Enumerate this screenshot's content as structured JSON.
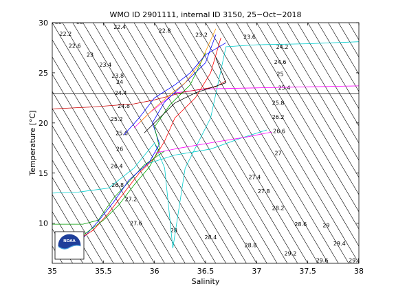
{
  "chart_data": {
    "type": "line",
    "title": "WMO ID 2901111, internal ID 3150, 25−Oct−2018",
    "xlabel": "Salinity",
    "ylabel": "Temperature [°C]",
    "xlim": [
      35,
      38
    ],
    "ylim": [
      6,
      30
    ],
    "xticks": [
      "35",
      "35.5",
      "36",
      "36.5",
      "37",
      "37.5",
      "38"
    ],
    "yticks": [
      "10",
      "15",
      "20",
      "25",
      "30"
    ],
    "grid": false,
    "legend": "none",
    "background_contours": {
      "description_values": "density (sigma) isopycnal labels",
      "labels": [
        {
          "text": "22",
          "s": 35.06,
          "t": 29.9
        },
        {
          "text": "22",
          "s": 35.27,
          "t": 29.9
        },
        {
          "text": "22.2",
          "s": 35.13,
          "t": 28.7
        },
        {
          "text": "22.4",
          "s": 35.66,
          "t": 29.4
        },
        {
          "text": "22.6",
          "s": 35.22,
          "t": 27.5
        },
        {
          "text": "22.8",
          "s": 36.1,
          "t": 29.0
        },
        {
          "text": "23",
          "s": 35.37,
          "t": 26.6
        },
        {
          "text": "23.2",
          "s": 36.46,
          "t": 28.6
        },
        {
          "text": "23.4",
          "s": 35.52,
          "t": 25.6
        },
        {
          "text": "23.6",
          "s": 36.93,
          "t": 28.4
        },
        {
          "text": "23.8",
          "s": 35.64,
          "t": 24.5
        },
        {
          "text": "24",
          "s": 35.66,
          "t": 23.9
        },
        {
          "text": "24.2",
          "s": 37.25,
          "t": 27.4
        },
        {
          "text": "24.4",
          "s": 35.67,
          "t": 22.8
        },
        {
          "text": "24.6",
          "s": 37.23,
          "t": 25.9
        },
        {
          "text": "24.8",
          "s": 35.7,
          "t": 21.5
        },
        {
          "text": "25",
          "s": 37.23,
          "t": 24.7
        },
        {
          "text": "25.2",
          "s": 35.63,
          "t": 20.2
        },
        {
          "text": "25.4",
          "s": 37.27,
          "t": 23.3
        },
        {
          "text": "25.6",
          "s": 35.68,
          "t": 18.8
        },
        {
          "text": "25.8",
          "s": 37.21,
          "t": 21.8
        },
        {
          "text": "26",
          "s": 35.66,
          "t": 17.2
        },
        {
          "text": "26.2",
          "s": 37.21,
          "t": 20.4
        },
        {
          "text": "26.4",
          "s": 35.63,
          "t": 15.5
        },
        {
          "text": "26.6",
          "s": 37.22,
          "t": 19.0
        },
        {
          "text": "26.8",
          "s": 35.64,
          "t": 13.6
        },
        {
          "text": "27",
          "s": 37.21,
          "t": 16.8
        },
        {
          "text": "27.2",
          "s": 35.77,
          "t": 12.2
        },
        {
          "text": "27.4",
          "s": 36.98,
          "t": 14.4
        },
        {
          "text": "27.6",
          "s": 35.82,
          "t": 9.8
        },
        {
          "text": "27.8",
          "s": 37.07,
          "t": 13.0
        },
        {
          "text": "28",
          "s": 36.19,
          "t": 9.1
        },
        {
          "text": "28.2",
          "s": 37.21,
          "t": 11.3
        },
        {
          "text": "28.4",
          "s": 36.55,
          "t": 8.4
        },
        {
          "text": "28.6",
          "s": 37.43,
          "t": 9.7
        },
        {
          "text": "28.8",
          "s": 36.94,
          "t": 7.6
        },
        {
          "text": "29",
          "s": 37.68,
          "t": 9.6
        },
        {
          "text": "29.2",
          "s": 37.33,
          "t": 6.8
        },
        {
          "text": "29.4",
          "s": 37.81,
          "t": 7.8
        },
        {
          "text": "29.6",
          "s": 37.64,
          "t": 6.1
        },
        {
          "text": "29.8",
          "s": 37.96,
          "t": 6.1
        }
      ]
    },
    "series": [
      {
        "color": "#00cccc",
        "s": [
          35.0,
          35.25,
          35.55,
          35.8,
          36.0,
          36.1,
          36.18,
          36.3,
          36.45,
          36.55,
          36.7,
          37.0,
          37.5,
          38.0
        ],
        "t": [
          13.0,
          13.1,
          13.5,
          15.5,
          18.0,
          15.5,
          7.5,
          15.5,
          18.5,
          20.5,
          27.6,
          27.8,
          27.9,
          28.1
        ]
      },
      {
        "color": "#ff00ff",
        "s": [
          35.8,
          35.95,
          36.2,
          36.5,
          37.0,
          37.5,
          38.0
        ],
        "t": [
          19.5,
          21.0,
          23.0,
          23.4,
          23.5,
          23.6,
          23.7
        ]
      },
      {
        "color": "#cc0000",
        "s": [
          35.0,
          35.4,
          35.8,
          36.0,
          36.3,
          36.6,
          36.7
        ],
        "t": [
          21.4,
          21.6,
          21.9,
          22.3,
          23.1,
          23.6,
          24.2
        ]
      },
      {
        "color": "#009900",
        "s": [
          35.0,
          35.3,
          35.45,
          35.6,
          35.9,
          36.1
        ],
        "t": [
          9.9,
          9.9,
          10.3,
          12.5,
          15.8,
          17.2
        ]
      },
      {
        "color": "#000000",
        "s": [
          35.0,
          35.5,
          36.0,
          36.5,
          37.0,
          37.5,
          38.0
        ],
        "t": [
          22.9,
          22.9,
          22.9,
          22.9,
          22.9,
          22.9,
          22.9
        ]
      },
      {
        "color": "#0000ff",
        "s": [
          35.1,
          35.3,
          35.45,
          35.6,
          35.75,
          35.95,
          36.05,
          35.98,
          36.1,
          36.3,
          36.5,
          36.6
        ],
        "t": [
          7.1,
          8.5,
          10.2,
          12.1,
          14.3,
          16.1,
          17.9,
          20.0,
          22.1,
          24.0,
          26.0,
          28.8
        ]
      },
      {
        "color": "#ff0000",
        "s": [
          35.2,
          35.4,
          35.55,
          35.7,
          35.85,
          36.0,
          36.1,
          36.2,
          36.4,
          36.55,
          36.65
        ],
        "t": [
          8.0,
          9.3,
          11.0,
          13.0,
          15.0,
          16.5,
          18.2,
          20.5,
          22.5,
          25.0,
          28.5
        ]
      },
      {
        "color": "#00aa00",
        "s": [
          35.3,
          35.5,
          35.65,
          35.8,
          35.95,
          36.05,
          36.0,
          36.15,
          36.35,
          36.5
        ],
        "t": [
          8.8,
          10.3,
          11.8,
          13.8,
          15.6,
          17.5,
          19.6,
          21.8,
          23.8,
          27.0
        ]
      },
      {
        "color": "#00cccc",
        "s": [
          35.95,
          36.2,
          36.55,
          36.85,
          37.1
        ],
        "t": [
          16.0,
          16.8,
          17.4,
          18.5,
          19.3
        ]
      },
      {
        "color": "#ff00ff",
        "s": [
          36.0,
          36.25,
          36.6,
          36.9,
          37.15
        ],
        "t": [
          17.0,
          17.5,
          18.1,
          18.6,
          19.1
        ]
      },
      {
        "color": "#000000",
        "s": [
          35.9,
          36.05,
          36.2,
          36.4,
          36.7,
          36.6
        ],
        "t": [
          19.0,
          20.5,
          22.0,
          23.0,
          24.0,
          26.5
        ]
      },
      {
        "color": "#ff9900",
        "s": [
          35.85,
          36.0,
          36.15,
          36.3,
          36.45,
          36.6
        ],
        "t": [
          20.0,
          21.5,
          22.8,
          24.0,
          26.0,
          29.4
        ]
      },
      {
        "color": "#0000ff",
        "s": [
          35.7,
          35.85,
          36.0,
          36.2,
          36.35,
          36.5,
          36.7
        ],
        "t": [
          18.8,
          20.5,
          22.5,
          23.8,
          25.0,
          26.8,
          28.0
        ]
      }
    ]
  },
  "figure": {
    "logo": {
      "icon": "noaa-logo-icon",
      "text": "NOAA"
    }
  }
}
